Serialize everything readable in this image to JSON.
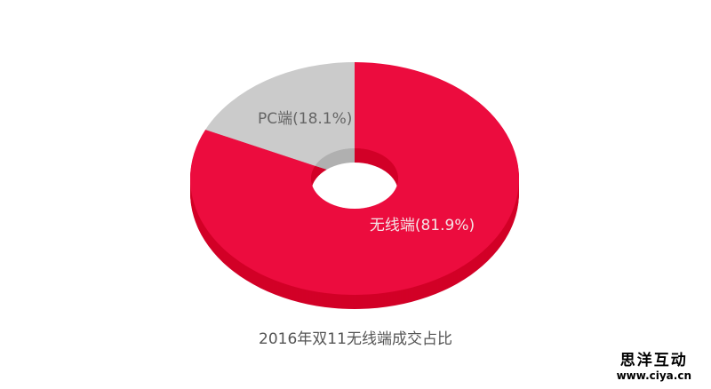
{
  "chart_data": {
    "type": "pie",
    "variant": "3d-donut",
    "title": "2016年双11无线端成交占比",
    "slices": [
      {
        "name": "无线端",
        "value": 81.9,
        "label": "无线端(81.9%)",
        "color": "#ec0c3e",
        "side_color": "#d20027",
        "label_color": "#f4e4e6"
      },
      {
        "name": "PC端",
        "value": 18.1,
        "label": "PC端(18.1%)",
        "color": "#cbcbcb",
        "side_color": "#b0b0b0",
        "label_color": "#666666"
      }
    ],
    "start": "top",
    "direction": "clockwise"
  },
  "watermark": {
    "line1": "思洋互动",
    "line2": "www.ciya.cn"
  }
}
